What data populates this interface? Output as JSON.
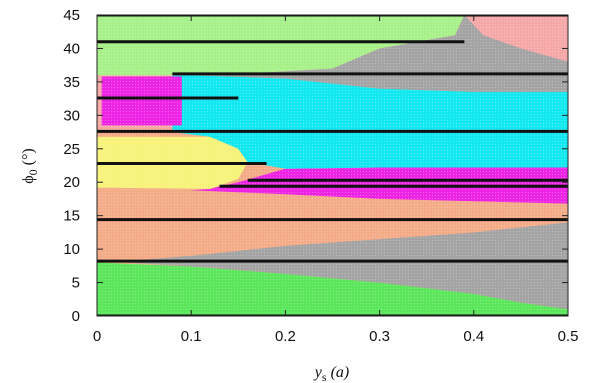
{
  "chart_data": {
    "type": "heatmap",
    "title": "",
    "xlabel": "y",
    "xlabel_subscript": "s",
    "xlabel_unit": "(a)",
    "ylabel": "ϕ",
    "ylabel_subscript": "0",
    "ylabel_unit": "(°)",
    "xlim": [
      0,
      0.5
    ],
    "ylim": [
      0,
      45
    ],
    "x_ticks": [
      "0",
      "0.1",
      "0.2",
      "0.3",
      "0.4",
      "0.5"
    ],
    "y_ticks": [
      "0",
      "5",
      "10",
      "15",
      "20",
      "25",
      "30",
      "35",
      "40",
      "45"
    ],
    "grid": false,
    "legend": "none",
    "colors": {
      "green": "#5ce65c",
      "light_green": "#a8f08a",
      "salmon": "#f4ab88",
      "yellow": "#f6f27a",
      "cyan": "#13e7f0",
      "magenta": "#ee24e4",
      "gray": "#a4a4a4",
      "pink": "#f6a8a8",
      "black": "#111111"
    },
    "regions": [
      {
        "color": "green",
        "polygon": [
          [
            0,
            0
          ],
          [
            0.5,
            0
          ],
          [
            0.5,
            1
          ],
          [
            0.45,
            2
          ],
          [
            0.4,
            3.3
          ],
          [
            0.3,
            5
          ],
          [
            0.2,
            6.3
          ],
          [
            0.1,
            7.4
          ],
          [
            0,
            8
          ]
        ]
      },
      {
        "color": "gray",
        "polygon": [
          [
            0.5,
            1
          ],
          [
            0.45,
            2
          ],
          [
            0.4,
            3.3
          ],
          [
            0.3,
            5
          ],
          [
            0.2,
            6.3
          ],
          [
            0.1,
            7.4
          ],
          [
            0.03,
            8
          ],
          [
            0.03,
            8.3
          ],
          [
            0.1,
            9
          ],
          [
            0.2,
            10.5
          ],
          [
            0.3,
            11.5
          ],
          [
            0.4,
            12.5
          ],
          [
            0.5,
            14
          ],
          [
            0.5,
            8
          ]
        ]
      },
      {
        "color": "salmon",
        "polygon": [
          [
            0,
            8.2
          ],
          [
            0.03,
            8.2
          ],
          [
            0.1,
            9
          ],
          [
            0.2,
            10.5
          ],
          [
            0.3,
            11.5
          ],
          [
            0.4,
            12.5
          ],
          [
            0.5,
            14.5
          ],
          [
            0.5,
            16.8
          ],
          [
            0.3,
            17.5
          ],
          [
            0.2,
            18.3
          ],
          [
            0.1,
            18.8
          ],
          [
            0,
            19.2
          ]
        ]
      },
      {
        "color": "magenta",
        "polygon": [
          [
            0.1,
            18.8
          ],
          [
            0.2,
            18.2
          ],
          [
            0.3,
            17.5
          ],
          [
            0.5,
            16.8
          ],
          [
            0.5,
            22.2
          ],
          [
            0.3,
            22.2
          ],
          [
            0.2,
            22
          ],
          [
            0.15,
            20
          ],
          [
            0.12,
            19
          ]
        ]
      },
      {
        "color": "yellow",
        "polygon": [
          [
            0,
            19.2
          ],
          [
            0.12,
            19
          ],
          [
            0.15,
            20.5
          ],
          [
            0.16,
            23
          ],
          [
            0.15,
            25
          ],
          [
            0.12,
            26.8
          ],
          [
            0,
            26.8
          ]
        ]
      },
      {
        "color": "cyan",
        "polygon": [
          [
            0.12,
            26.8
          ],
          [
            0.15,
            25
          ],
          [
            0.16,
            23
          ],
          [
            0.2,
            22
          ],
          [
            0.3,
            22.2
          ],
          [
            0.5,
            22.2
          ],
          [
            0.5,
            33.5
          ],
          [
            0.4,
            33.5
          ],
          [
            0.3,
            34
          ],
          [
            0.2,
            35.5
          ],
          [
            0.1,
            36
          ],
          [
            0.08,
            36
          ],
          [
            0.08,
            27.5
          ]
        ]
      },
      {
        "color": "salmon",
        "polygon": [
          [
            0,
            27.5
          ],
          [
            0.08,
            27.5
          ],
          [
            0.08,
            28
          ],
          [
            0,
            28
          ]
        ]
      },
      {
        "color": "pink",
        "polygon": [
          [
            0,
            28
          ],
          [
            0.08,
            28
          ],
          [
            0.08,
            36
          ],
          [
            0,
            36
          ]
        ]
      },
      {
        "color": "magenta",
        "polygon": [
          [
            0.005,
            28.5
          ],
          [
            0.09,
            28.5
          ],
          [
            0.09,
            35.8
          ],
          [
            0.005,
            35.8
          ]
        ]
      },
      {
        "color": "gray",
        "polygon": [
          [
            0.08,
            36
          ],
          [
            0.1,
            36
          ],
          [
            0.2,
            35.5
          ],
          [
            0.3,
            34
          ],
          [
            0.4,
            33.5
          ],
          [
            0.5,
            33.5
          ],
          [
            0.5,
            45
          ],
          [
            0.39,
            45
          ],
          [
            0.38,
            42
          ],
          [
            0.3,
            40
          ],
          [
            0.25,
            37
          ],
          [
            0.15,
            36.2
          ]
        ]
      },
      {
        "color": "pink",
        "polygon": [
          [
            0.39,
            45
          ],
          [
            0.5,
            45
          ],
          [
            0.5,
            38
          ],
          [
            0.45,
            40
          ],
          [
            0.41,
            42
          ]
        ]
      },
      {
        "color": "light_green",
        "polygon": [
          [
            0,
            36
          ],
          [
            0.08,
            36
          ],
          [
            0.15,
            36.2
          ],
          [
            0.25,
            37
          ],
          [
            0.3,
            40
          ],
          [
            0.38,
            42
          ],
          [
            0.39,
            45
          ],
          [
            0,
            45
          ]
        ]
      }
    ],
    "black_lines": [
      {
        "y": 0,
        "x": [
          0,
          0.5
        ]
      },
      {
        "y": 8.2,
        "x": [
          0,
          0.5
        ]
      },
      {
        "y": 14.4,
        "x": [
          0,
          0.5
        ]
      },
      {
        "y": 19.4,
        "x": [
          0.13,
          0.5
        ]
      },
      {
        "y": 20.3,
        "x": [
          0.16,
          0.5
        ]
      },
      {
        "y": 22.8,
        "x": [
          0,
          0.18
        ]
      },
      {
        "y": 27.6,
        "x": [
          0,
          0.5
        ]
      },
      {
        "y": 32.6,
        "x": [
          0,
          0.15
        ]
      },
      {
        "y": 36.2,
        "x": [
          0.08,
          0.5
        ]
      },
      {
        "y": 41,
        "x": [
          0,
          0.39
        ]
      },
      {
        "y": 45,
        "x": [
          0,
          0.5
        ]
      }
    ]
  }
}
